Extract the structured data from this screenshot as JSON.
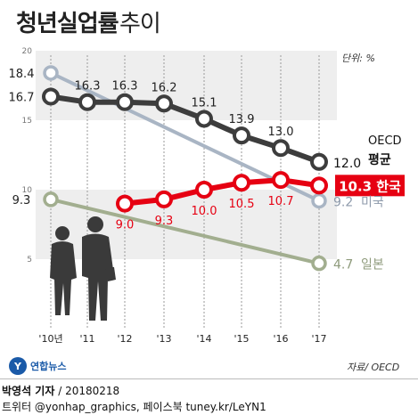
{
  "header": {
    "title": "청년실업률",
    "subtitle": "추이",
    "unit": "단위: %",
    "source": "자료/ OECD"
  },
  "footer": {
    "logo_mark": "Y",
    "logo_text": "연합뉴스",
    "author": "박영석 기자",
    "date": "/ 20180218",
    "social": "트위터 @yonhap_graphics, 페이스북 tuney.kr/LeYN1"
  },
  "colors": {
    "oecd": "#3d3d3d",
    "korea": "#e60012",
    "usa": "#a9b5c4",
    "japan": "#a2ae8f",
    "band": "#eeeeee"
  },
  "chart_data": {
    "type": "line",
    "x": [
      "'10년",
      "'11",
      "'12",
      "'13",
      "'14",
      "'15",
      "'16",
      "'17"
    ],
    "ylim": [
      0,
      20
    ],
    "yticks": [
      5,
      10,
      15,
      20
    ],
    "grid": false,
    "series": [
      {
        "name": "OECD 평균",
        "end_label": "12.0 OECD 평균",
        "values": [
          16.7,
          16.3,
          16.3,
          16.2,
          15.1,
          13.9,
          13.0,
          12.0
        ],
        "labels": [
          "16.7",
          "16.3",
          "16.3",
          "16.2",
          "15.1",
          "13.9",
          "13.0",
          "12.0"
        ],
        "end_label_parts": [
          "12.0",
          "OECD",
          "평균"
        ],
        "color": "#3d3d3d"
      },
      {
        "name": "한국",
        "end_label": "10.3 한국",
        "values": [
          null,
          null,
          9.0,
          9.3,
          10.0,
          10.5,
          10.7,
          10.3
        ],
        "labels": [
          "",
          "",
          "9.0",
          "9.3",
          "10.0",
          "10.5",
          "10.7",
          "10.3"
        ],
        "end_label_parts": [
          "10.3 한국"
        ],
        "color": "#e60012"
      },
      {
        "name": "미국",
        "end_label": "9.2 미국",
        "values": [
          18.4,
          null,
          null,
          null,
          null,
          null,
          null,
          9.2
        ],
        "labels": [
          "18.4",
          "",
          "",
          "",
          "",
          "",
          "",
          "9.2"
        ],
        "end_label_parts": [
          "9.2",
          "미국"
        ],
        "color": "#a9b5c4"
      },
      {
        "name": "일본",
        "end_label": "4.7 일본",
        "values": [
          9.3,
          null,
          null,
          null,
          null,
          null,
          null,
          4.7
        ],
        "labels": [
          "9.3",
          "",
          "",
          "",
          "",
          "",
          "",
          "4.7"
        ],
        "end_label_parts": [
          "4.7",
          "일본"
        ],
        "color": "#a2ae8f"
      }
    ]
  }
}
